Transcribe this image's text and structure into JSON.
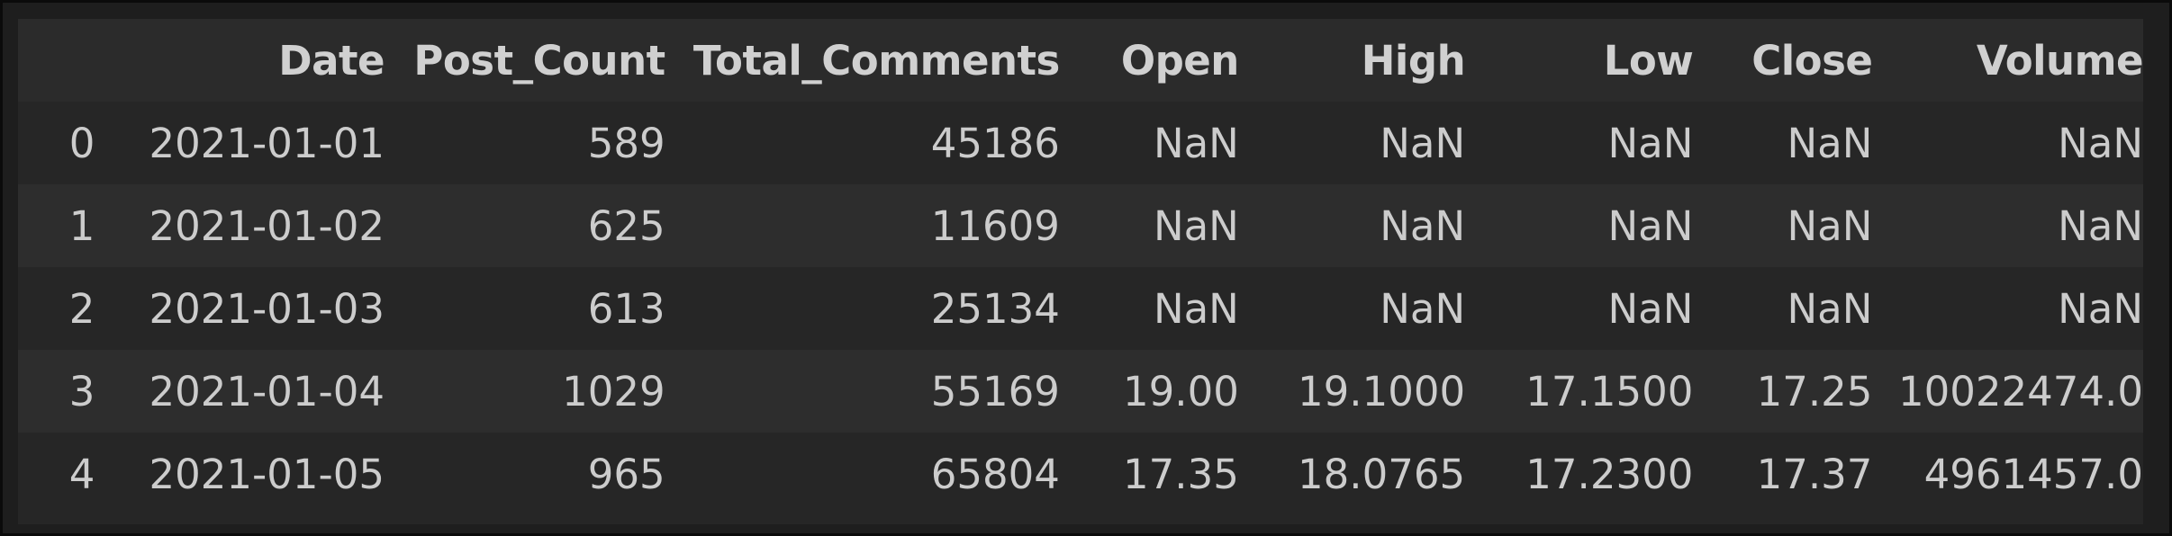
{
  "table": {
    "columns": [
      "",
      "Date",
      "Post_Count",
      "Total_Comments",
      "Open",
      "High",
      "Low",
      "Close",
      "Volume"
    ],
    "rows": [
      [
        "0",
        "2021-01-01",
        "589",
        "45186",
        "NaN",
        "NaN",
        "NaN",
        "NaN",
        "NaN"
      ],
      [
        "1",
        "2021-01-02",
        "625",
        "11609",
        "NaN",
        "NaN",
        "NaN",
        "NaN",
        "NaN"
      ],
      [
        "2",
        "2021-01-03",
        "613",
        "25134",
        "NaN",
        "NaN",
        "NaN",
        "NaN",
        "NaN"
      ],
      [
        "3",
        "2021-01-04",
        "1029",
        "55169",
        "19.00",
        "19.1000",
        "17.1500",
        "17.25",
        "10022474.0"
      ],
      [
        "4",
        "2021-01-05",
        "965",
        "65804",
        "17.35",
        "18.0765",
        "17.2300",
        "17.37",
        "4961457.0"
      ]
    ]
  },
  "colors": {
    "background": "#1e1e1e",
    "header_bg": "#2b2b2b",
    "row_odd": "#262626",
    "row_even": "#2d2d2d",
    "text": "#cccccc"
  }
}
